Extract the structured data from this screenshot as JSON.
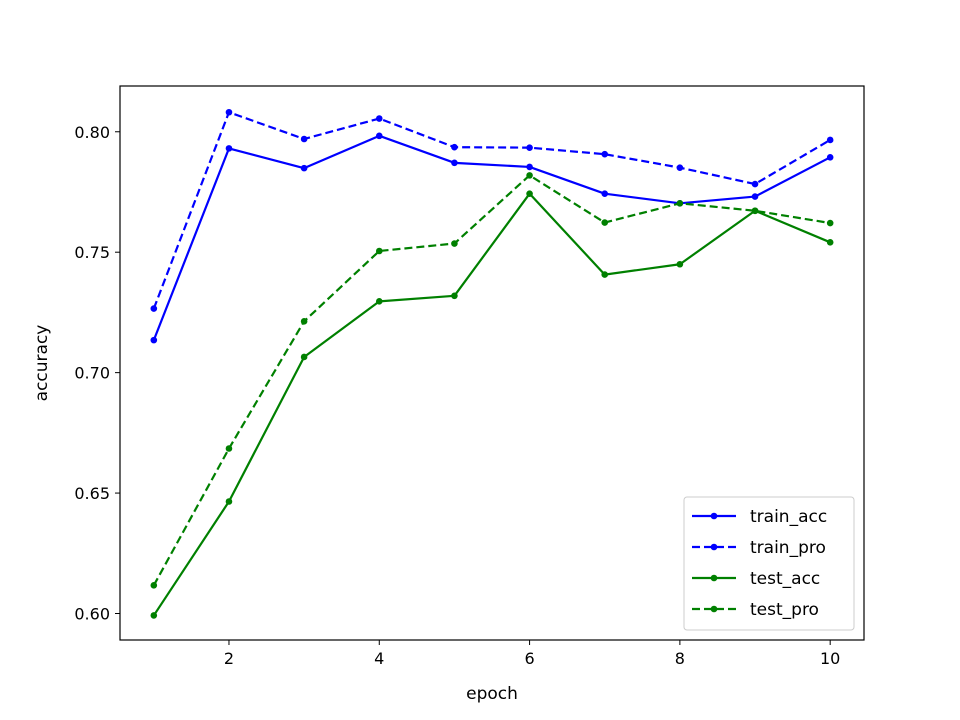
{
  "chart_data": {
    "type": "line",
    "title": "",
    "xlabel": "epoch",
    "ylabel": "accuracy",
    "x": [
      1,
      2,
      3,
      4,
      5,
      6,
      7,
      8,
      9,
      10
    ],
    "xlim": [
      0.55,
      10.45
    ],
    "ylim": [
      0.589,
      0.819
    ],
    "xticks": [
      2,
      4,
      6,
      8,
      10
    ],
    "yticks": [
      0.6,
      0.65,
      0.7,
      0.75,
      0.8
    ],
    "ytick_labels": [
      "0.60",
      "0.65",
      "0.70",
      "0.75",
      "0.80"
    ],
    "grid": false,
    "legend_position": "lower-right",
    "series": [
      {
        "name": "train_acc",
        "color": "#0000ff",
        "linestyle": "solid",
        "marker": "circle",
        "values": [
          0.7135,
          0.7931,
          0.7849,
          0.7983,
          0.7871,
          0.7854,
          0.7743,
          0.7703,
          0.7731,
          0.7894
        ]
      },
      {
        "name": "train_pro",
        "color": "#0000ff",
        "linestyle": "dashed",
        "marker": "circle",
        "values": [
          0.7266,
          0.8081,
          0.797,
          0.8055,
          0.7936,
          0.7934,
          0.7907,
          0.7851,
          0.7783,
          0.7966
        ]
      },
      {
        "name": "test_acc",
        "color": "#008000",
        "linestyle": "solid",
        "marker": "circle",
        "values": [
          0.5992,
          0.6465,
          0.7065,
          0.7296,
          0.7319,
          0.7743,
          0.7407,
          0.745,
          0.7672,
          0.7541
        ]
      },
      {
        "name": "test_pro",
        "color": "#008000",
        "linestyle": "dashed",
        "marker": "circle",
        "values": [
          0.6117,
          0.6685,
          0.7213,
          0.7505,
          0.7536,
          0.7819,
          0.7623,
          0.7703,
          0.7672,
          0.7621
        ]
      }
    ]
  }
}
